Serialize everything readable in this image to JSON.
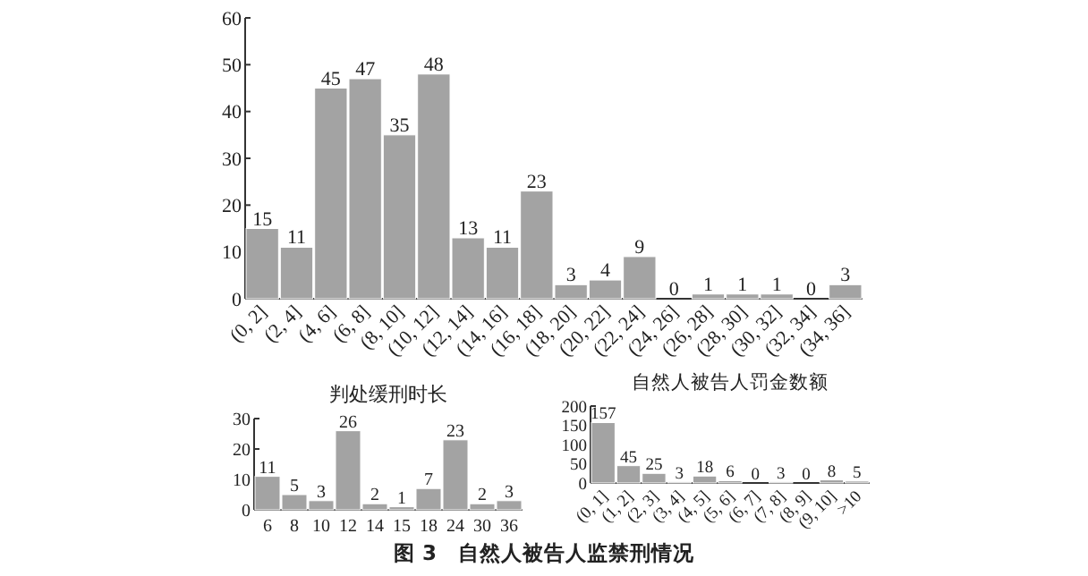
{
  "chart_data": [
    {
      "type": "bar",
      "categories": [
        "(0, 2]",
        "(2, 4]",
        "(4, 6]",
        "(6, 8]",
        "(8, 10]",
        "(10, 12]",
        "(12, 14]",
        "(14, 16]",
        "(16, 18]",
        "(18, 20]",
        "(20, 22]",
        "(22, 24]",
        "(24, 26]",
        "(26, 28]",
        "(28, 30]",
        "(30, 32]",
        "(32, 34]",
        "(34, 36]"
      ],
      "values": [
        15,
        11,
        45,
        47,
        35,
        48,
        13,
        11,
        23,
        3,
        4,
        9,
        0,
        1,
        1,
        1,
        0,
        3
      ],
      "color": "#a3a3a3",
      "ylim": [
        0,
        60
      ],
      "yticks": [
        0,
        10,
        20,
        30,
        40,
        50,
        60
      ],
      "data_labels": true,
      "annotations": [
        "图 3　自然人被告人监禁刑情况"
      ]
    },
    {
      "type": "bar",
      "title": "判处缓刑时长",
      "categories": [
        "6",
        "8",
        "10",
        "12",
        "14",
        "15",
        "18",
        "24",
        "30",
        "36"
      ],
      "values": [
        11,
        5,
        3,
        26,
        2,
        1,
        7,
        23,
        2,
        3
      ],
      "color": "#a3a3a3",
      "ylim": [
        0,
        30
      ],
      "yticks": [
        0,
        10,
        20,
        30
      ],
      "data_labels": true
    },
    {
      "type": "bar",
      "title": "自然人被告人罚金数额",
      "categories": [
        "(0, 1]",
        "(1, 2]",
        "(2, 3]",
        "(3, 4]",
        "(4, 5]",
        "(5, 6]",
        "(6, 7]",
        "(7, 8]",
        "(8, 9]",
        "(9, 10]",
        ">10"
      ],
      "values": [
        157,
        45,
        25,
        3,
        18,
        6,
        0,
        3,
        0,
        8,
        5
      ],
      "color": "#a3a3a3",
      "ylim": [
        0,
        200
      ],
      "yticks": [
        0,
        50,
        100,
        150,
        200
      ],
      "data_labels": true
    }
  ]
}
